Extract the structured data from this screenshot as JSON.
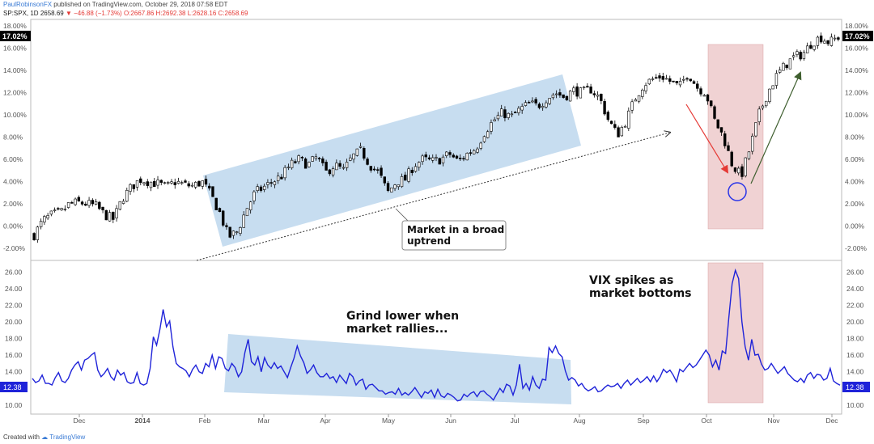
{
  "header": {
    "author": "PaulRobinsonFX",
    "published": "published on TradingView.com, October 29, 2018 07:58 EDT",
    "symbol": "SP:SPX, 1D",
    "last": "2658.69",
    "change_arrow": "▼",
    "change": "−46.88 (−1.73%)",
    "ohlc": "O:2667.86 H:2692.38 L:2628.16 C:2658.69"
  },
  "footer": {
    "created_with": "Created with",
    "brand": "TradingView"
  },
  "annotations": {
    "uptrend_line1": "Market in a broad",
    "uptrend_line2": "uptrend",
    "grind_line1": "Grind lower when",
    "grind_line2": "market rallies...",
    "vix_line1": "VIX spikes as",
    "vix_line2": "market bottoms"
  },
  "colors": {
    "vix_line": "#1f23d9",
    "up_candle": "#ffffff",
    "down_candle": "#000000",
    "blue_zone": "#c7ddf0",
    "red_zone": "#f0d2d3",
    "red_arrow": "#e53935",
    "green_arrow": "#3f5f2f",
    "badge": "#1f23d9"
  },
  "chart_data": [
    {
      "type": "candlestick",
      "title": "SP:SPX, 1D",
      "x_ticks": [
        "Dec",
        "2014",
        "Feb",
        "Mar",
        "Apr",
        "May",
        "Jun",
        "Jul",
        "Aug",
        "Sep",
        "Oct",
        "Nov",
        "Dec"
      ],
      "y_ticks": [
        "-2.00%",
        "0.00%",
        "2.00%",
        "4.00%",
        "6.00%",
        "8.00%",
        "10.00%",
        "12.00%",
        "14.00%",
        "16.00%",
        "18.00%"
      ],
      "ylim": [
        -2.8,
        18.3
      ],
      "last_value_label": "17.02%",
      "close_path_pct": [
        [
          -0.8,
          0
        ],
        [
          0.5,
          1
        ],
        [
          1.0,
          1
        ],
        [
          1.2,
          1
        ],
        [
          2.0,
          1
        ],
        [
          2.1,
          1
        ],
        [
          2.0,
          1
        ],
        [
          1.8,
          1
        ],
        [
          1.0,
          1
        ],
        [
          0.6,
          0
        ],
        [
          2.5,
          1
        ],
        [
          3.5,
          1
        ],
        [
          4.2,
          1
        ],
        [
          4.0,
          1
        ],
        [
          3.8,
          1
        ],
        [
          3.5,
          1
        ],
        [
          4.0,
          1
        ],
        [
          3.7,
          1
        ],
        [
          3.6,
          1
        ],
        [
          4.0,
          1
        ],
        [
          2.8,
          1
        ],
        [
          1.2,
          1
        ],
        [
          -1.0,
          1
        ],
        [
          -0.5,
          1
        ],
        [
          1.5,
          1
        ],
        [
          3.0,
          1
        ],
        [
          3.5,
          1
        ],
        [
          4.0,
          1
        ],
        [
          4.5,
          1
        ],
        [
          5.5,
          1
        ],
        [
          6.0,
          1
        ],
        [
          5.5,
          1
        ],
        [
          6.2,
          1
        ],
        [
          4.8,
          1
        ],
        [
          5.5,
          1
        ],
        [
          5.0,
          1
        ],
        [
          6.2,
          1
        ],
        [
          6.8,
          1
        ],
        [
          5.5,
          1
        ],
        [
          4.8,
          1
        ],
        [
          3.0,
          1
        ],
        [
          4.0,
          1
        ],
        [
          4.2,
          1
        ],
        [
          5.5,
          1
        ],
        [
          6.0,
          1
        ],
        [
          5.8,
          1
        ],
        [
          6.0,
          1
        ],
        [
          6.5,
          1
        ],
        [
          5.8,
          1
        ],
        [
          6.5,
          1
        ],
        [
          7.0,
          1
        ],
        [
          8.5,
          1
        ],
        [
          9.5,
          1
        ],
        [
          10.2,
          1
        ],
        [
          9.8,
          1
        ],
        [
          10.5,
          1
        ],
        [
          11.0,
          1
        ],
        [
          10.8,
          1
        ],
        [
          11.5,
          1
        ],
        [
          12.0,
          1
        ],
        [
          11.6,
          1
        ],
        [
          12.2,
          1
        ],
        [
          12.0,
          1
        ],
        [
          12.3,
          1
        ],
        [
          11.5,
          1
        ],
        [
          9.5,
          1
        ],
        [
          8.2,
          1
        ],
        [
          9.5,
          1
        ],
        [
          11.5,
          1
        ],
        [
          12.8,
          1
        ],
        [
          13.2,
          1
        ],
        [
          13.5,
          1
        ],
        [
          13.0,
          1
        ],
        [
          12.5,
          1
        ],
        [
          13.8,
          1
        ],
        [
          12.5,
          1
        ],
        [
          12.0,
          1
        ],
        [
          9.5,
          1
        ],
        [
          8.0,
          1
        ],
        [
          5.5,
          1
        ],
        [
          4.5,
          1
        ],
        [
          7.0,
          1
        ],
        [
          10.0,
          1
        ],
        [
          12.0,
          1
        ],
        [
          13.5,
          1
        ],
        [
          14.5,
          1
        ],
        [
          15.2,
          1
        ],
        [
          15.5,
          1
        ],
        [
          16.5,
          1
        ],
        [
          17.0,
          1
        ],
        [
          16.5,
          1
        ],
        [
          17.02,
          1
        ]
      ]
    },
    {
      "type": "line",
      "title": "VIX",
      "x_ticks": [
        "Dec",
        "2014",
        "Feb",
        "Mar",
        "Apr",
        "May",
        "Jun",
        "Jul",
        "Aug",
        "Sep",
        "Oct",
        "Nov",
        "Dec"
      ],
      "y_ticks": [
        "10.00",
        "12.00",
        "14.00",
        "16.00",
        "18.00",
        "20.00",
        "22.00",
        "24.00",
        "26.00"
      ],
      "ylim": [
        9.3,
        27.0
      ],
      "last_value_label": "12.38",
      "series": [
        {
          "values": [
            13.2,
            12.7,
            12.9,
            13.6,
            12.6,
            12.6,
            12.4,
            13.3,
            13.9,
            12.9,
            12.7,
            13.2,
            14.2,
            14.8,
            15.2,
            14.2,
            15.4,
            15.6,
            16.0,
            16.3,
            14.2,
            13.4,
            13.8,
            14.4,
            13.4,
            13.0,
            14.2,
            13.6,
            13.9,
            12.8,
            12.6,
            12.7,
            13.9,
            12.6,
            12.4,
            12.6,
            14.4,
            18.2,
            17.2,
            19.1,
            21.5,
            19.4,
            20.1,
            17.0,
            15.0,
            14.6,
            14.4,
            14.1,
            13.4,
            14.3,
            14.8,
            14.0,
            13.8,
            15.0,
            14.6,
            16.0,
            14.4,
            15.8,
            15.6,
            14.4,
            14.1,
            15.0,
            14.5,
            13.4,
            14.0,
            16.3,
            17.9,
            15.2,
            14.8,
            15.8,
            14.0,
            15.7,
            14.8,
            14.4,
            15.1,
            14.4,
            14.7,
            14.0,
            13.3,
            14.5,
            15.6,
            17.1,
            15.9,
            15.1,
            13.8,
            14.2,
            14.8,
            13.9,
            13.4,
            13.4,
            13.8,
            13.2,
            13.4,
            12.7,
            13.6,
            13.1,
            12.6,
            13.8,
            13.4,
            12.4,
            12.9,
            13.1,
            11.9,
            12.4,
            12.5,
            12.1,
            11.7,
            11.7,
            11.3,
            11.5,
            11.6,
            11.3,
            12.0,
            11.2,
            11.5,
            11.2,
            11.6,
            12.1,
            11.5,
            10.9,
            11.6,
            11.4,
            11.8,
            10.9,
            11.9,
            11.1,
            10.9,
            11.4,
            11.2,
            10.9,
            10.5,
            10.6,
            11.3,
            11.0,
            11.4,
            11.6,
            11.0,
            11.6,
            11.7,
            11.3,
            11.0,
            10.6,
            11.3,
            12.0,
            11.5,
            12.5,
            12.3,
            11.2,
            12.4,
            14.9,
            12.0,
            12.6,
            11.8,
            13.4,
            12.4,
            12.0,
            13.1,
            13.0,
            16.9,
            16.3,
            17.1,
            16.2,
            15.8,
            14.1,
            13.0,
            13.3,
            13.0,
            12.3,
            12.6,
            12.0,
            11.7,
            11.9,
            12.2,
            11.6,
            11.7,
            12.1,
            12.4,
            12.2,
            12.3,
            12.6,
            12.0,
            12.6,
            13.0,
            12.4,
            12.8,
            13.2,
            12.7,
            13.0,
            13.4,
            12.8,
            13.5,
            12.8,
            13.4,
            14.3,
            13.9,
            14.2,
            13.6,
            12.8,
            14.3,
            14.0,
            14.5,
            15.0,
            14.5,
            14.8,
            15.4,
            16.0,
            16.6,
            16.0,
            14.6,
            15.4,
            14.2,
            16.5,
            16.2,
            20.5,
            24.6,
            26.2,
            25.2,
            20.0,
            17.0,
            15.4,
            17.9,
            16.0,
            16.1,
            14.9,
            14.2,
            14.4,
            15.0,
            14.4,
            13.8,
            14.2,
            14.6,
            13.8,
            13.4,
            13.0,
            12.8,
            13.2,
            12.7,
            13.6,
            13.9,
            13.2,
            13.7,
            13.6,
            13.0,
            13.2,
            14.4,
            12.9,
            12.6,
            12.38
          ]
        }
      ]
    }
  ]
}
